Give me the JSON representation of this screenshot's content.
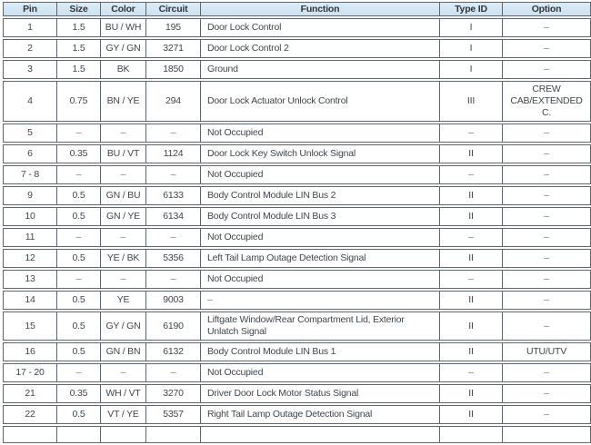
{
  "table": {
    "columns": [
      {
        "key": "pin",
        "label": "Pin"
      },
      {
        "key": "size",
        "label": "Size"
      },
      {
        "key": "color",
        "label": "Color"
      },
      {
        "key": "circuit",
        "label": "Circuit"
      },
      {
        "key": "function",
        "label": "Function"
      },
      {
        "key": "type_id",
        "label": "Type ID"
      },
      {
        "key": "option",
        "label": "Option"
      }
    ],
    "rows": [
      [
        "1",
        "1.5",
        "BU / WH",
        "195",
        "Door Lock Control",
        "I",
        "–"
      ],
      [
        "2",
        "1.5",
        "GY / GN",
        "3271",
        "Door Lock Control 2",
        "I",
        "–"
      ],
      [
        "3",
        "1.5",
        "BK",
        "1850",
        "Ground",
        "I",
        "–"
      ],
      [
        "4",
        "0.75",
        "BN / YE",
        "294",
        "Door Lock Actuator Unlock Control",
        "III",
        "CREW\nCAB/EXTENDED C."
      ],
      [
        "5",
        "–",
        "–",
        "–",
        "Not Occupied",
        "–",
        "–"
      ],
      [
        "6",
        "0.35",
        "BU / VT",
        "1124",
        "Door Lock Key Switch Unlock Signal",
        "II",
        "–"
      ],
      [
        "7 - 8",
        "–",
        "–",
        "–",
        "Not Occupied",
        "–",
        "–"
      ],
      [
        "9",
        "0.5",
        "GN / BU",
        "6133",
        "Body Control Module LIN Bus 2",
        "II",
        "–"
      ],
      [
        "10",
        "0.5",
        "GN / YE",
        "6134",
        "Body Control Module LIN Bus 3",
        "II",
        "–"
      ],
      [
        "11",
        "–",
        "–",
        "–",
        "Not Occupied",
        "–",
        "–"
      ],
      [
        "12",
        "0.5",
        "YE / BK",
        "5356",
        "Left Tail Lamp Outage Detection Signal",
        "II",
        "–"
      ],
      [
        "13",
        "–",
        "–",
        "–",
        "Not Occupied",
        "–",
        "–"
      ],
      [
        "14",
        "0.5",
        "YE",
        "9003",
        "–",
        "II",
        "–"
      ],
      [
        "15",
        "0.5",
        "GY / GN",
        "6190",
        "Liftgate Window/Rear Compartment Lid, Exterior Unlatch Signal",
        "II",
        "–"
      ],
      [
        "16",
        "0.5",
        "GN / BN",
        "6132",
        "Body Control Module LIN Bus 1",
        "II",
        "UTU/UTV"
      ],
      [
        "17 - 20",
        "–",
        "–",
        "–",
        "Not Occupied",
        "–",
        "–"
      ],
      [
        "21",
        "0.35",
        "WH / VT",
        "3270",
        "Driver Door Lock Motor Status Signal",
        "II",
        "–"
      ],
      [
        "22",
        "0.5",
        "VT / YE",
        "5357",
        "Right Tail Lamp Outage Detection Signal",
        "II",
        "–"
      ]
    ],
    "colors": {
      "header_bg_top": "#dcebf7",
      "header_bg_bottom": "#cde1f0",
      "border": "#5d666d",
      "text": "#3f464c",
      "dash": "#6e767d",
      "header_text": "#2f363c"
    }
  }
}
